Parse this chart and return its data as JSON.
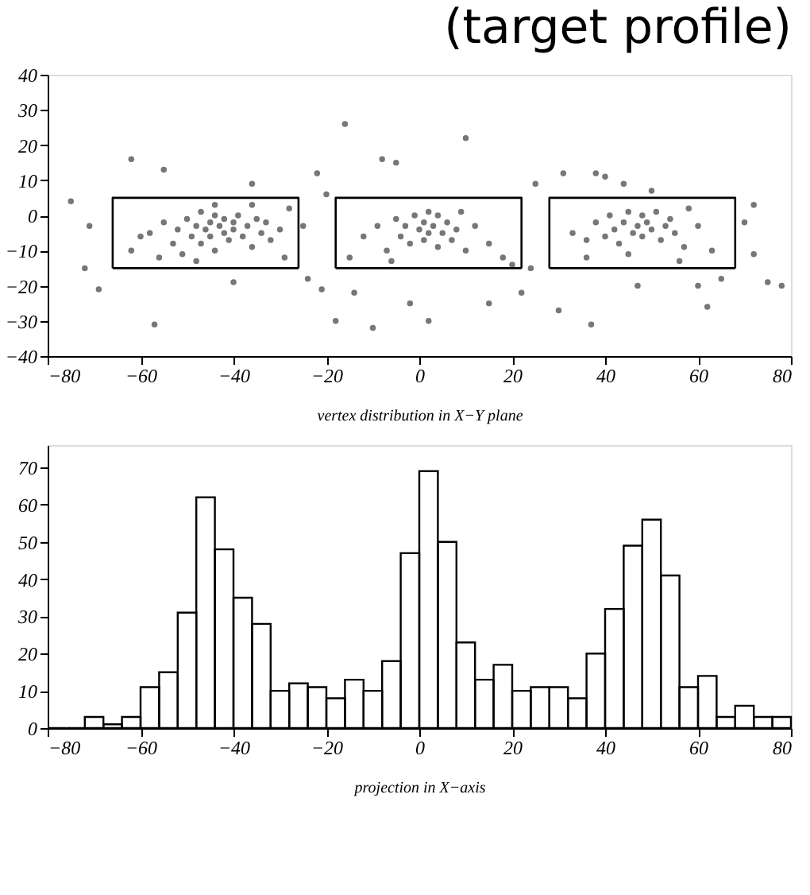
{
  "chart_data": [
    {
      "type": "scatter",
      "title": "(target profile)",
      "xlabel": "vertex distribution in X−Y plane",
      "xlim": [
        -80,
        80
      ],
      "ylim": [
        -40,
        40
      ],
      "xticks": [
        -80,
        -60,
        -40,
        -20,
        0,
        20,
        40,
        60,
        80
      ],
      "yticks": [
        -40,
        -30,
        -20,
        -10,
        0,
        10,
        20,
        30,
        40
      ],
      "grid": false,
      "series": [
        {
          "type": "scatter",
          "marker": "circle",
          "color": "#777777",
          "x": [
            -60,
            -58,
            -55,
            -53,
            -52,
            -51,
            -50,
            -49,
            -48,
            -47,
            -47,
            -46,
            -45,
            -45,
            -44,
            -44,
            -43,
            -42,
            -42,
            -41,
            -40,
            -40,
            -39,
            -38,
            -37,
            -36,
            -35,
            -34,
            -33,
            -32,
            -30,
            -28,
            -29,
            -56,
            -62,
            -48,
            -44,
            -36,
            -71,
            -72,
            -69,
            -57,
            -62,
            -55,
            -36,
            -25,
            -24,
            -40,
            -22,
            -21,
            -75,
            -12,
            -9,
            -7,
            -5,
            -4,
            -3,
            -2,
            -1,
            0,
            1,
            1,
            2,
            2,
            3,
            4,
            4,
            5,
            6,
            7,
            8,
            9,
            10,
            12,
            15,
            18,
            -15,
            20,
            -6,
            -8,
            -5,
            -16,
            -20,
            -14,
            -2,
            2,
            10,
            25,
            24,
            22,
            -10,
            15,
            -18,
            33,
            36,
            38,
            40,
            41,
            42,
            43,
            44,
            45,
            46,
            47,
            48,
            48,
            49,
            50,
            51,
            52,
            53,
            54,
            55,
            57,
            58,
            60,
            63,
            36,
            45,
            56,
            40,
            38,
            44,
            31,
            50,
            70,
            72,
            75,
            78,
            60,
            47,
            30,
            37,
            65,
            72,
            62
          ],
          "values": [
            -6,
            -5,
            -2,
            -8,
            -4,
            -11,
            -1,
            -6,
            -3,
            1,
            -8,
            -4,
            -2,
            -6,
            0,
            -10,
            -3,
            -5,
            -1,
            -7,
            -2,
            -4,
            0,
            -6,
            -3,
            -9,
            -1,
            -5,
            -2,
            -7,
            -4,
            2,
            -12,
            -12,
            -10,
            -13,
            3,
            3,
            -3,
            -15,
            -21,
            -31,
            16,
            13,
            9,
            -3,
            -18,
            -19,
            12,
            -21,
            4,
            -6,
            -3,
            -10,
            -1,
            -6,
            -3,
            -8,
            0,
            -4,
            -2,
            -7,
            1,
            -5,
            -3,
            -9,
            0,
            -5,
            -2,
            -7,
            -4,
            1,
            -10,
            -3,
            -8,
            -12,
            -12,
            -14,
            -13,
            16,
            15,
            26,
            6,
            -22,
            -25,
            -30,
            22,
            9,
            -15,
            -22,
            -32,
            -25,
            -30,
            -5,
            -7,
            -2,
            -6,
            0,
            -4,
            -8,
            -2,
            1,
            -5,
            -3,
            0,
            -6,
            -2,
            -4,
            1,
            -7,
            -3,
            -1,
            -5,
            -9,
            2,
            -3,
            -10,
            -12,
            -11,
            -13,
            11,
            12,
            9,
            12,
            7,
            -2,
            -11,
            -19,
            -20,
            -20,
            -20,
            -27,
            -31,
            -18,
            3,
            -26
          ]
        },
        {
          "type": "line",
          "marker": "none",
          "line_style": "solid",
          "color": "#000000",
          "x": [
            -66,
            -66,
            -26,
            -26
          ],
          "values": [
            -15,
            5,
            5,
            -15
          ]
        },
        {
          "type": "line",
          "marker": "none",
          "line_style": "solid",
          "color": "#000000",
          "x": [
            -66,
            -26
          ],
          "values": [
            -15,
            -15
          ]
        },
        {
          "type": "line",
          "marker": "none",
          "line_style": "solid",
          "color": "#000000",
          "x": [
            -18,
            -18,
            22,
            22
          ],
          "values": [
            -15,
            5,
            5,
            -15
          ]
        },
        {
          "type": "line",
          "marker": "none",
          "line_style": "solid",
          "color": "#000000",
          "x": [
            -18,
            22
          ],
          "values": [
            -15,
            -15
          ]
        },
        {
          "type": "line",
          "marker": "none",
          "line_style": "solid",
          "color": "#000000",
          "x": [
            28,
            28,
            68,
            68
          ],
          "values": [
            -15,
            5,
            5,
            -15
          ]
        },
        {
          "type": "line",
          "marker": "none",
          "line_style": "solid",
          "color": "#000000",
          "x": [
            28,
            68
          ],
          "values": [
            -15,
            -15
          ]
        }
      ]
    },
    {
      "type": "histogram",
      "xlabel": "projection in X−axis",
      "xlim": [
        -80,
        80
      ],
      "ylim": [
        0,
        76
      ],
      "xticks": [
        -80,
        -60,
        -40,
        -20,
        0,
        20,
        40,
        60,
        80
      ],
      "yticks": [
        0,
        10,
        20,
        30,
        40,
        50,
        60,
        70
      ],
      "grid": false,
      "color": "#000000",
      "bins": [
        -80,
        -76,
        -72,
        -68,
        -64,
        -60,
        -56,
        -52,
        -48,
        -44,
        -40,
        -36,
        -32,
        -28,
        -24,
        -20,
        -16,
        -12,
        -8,
        -4,
        0,
        4,
        8,
        12,
        16,
        20,
        24,
        28,
        32,
        36,
        40,
        44,
        48,
        52,
        56,
        60,
        64,
        68,
        72,
        76,
        80
      ],
      "values": [
        0,
        0,
        3,
        1,
        3,
        11,
        15,
        31,
        62,
        48,
        35,
        28,
        10,
        12,
        11,
        8,
        13,
        10,
        18,
        47,
        69,
        50,
        23,
        13,
        17,
        10,
        11,
        11,
        8,
        20,
        32,
        49,
        56,
        41,
        11,
        14,
        3,
        6,
        3,
        3
      ]
    }
  ]
}
